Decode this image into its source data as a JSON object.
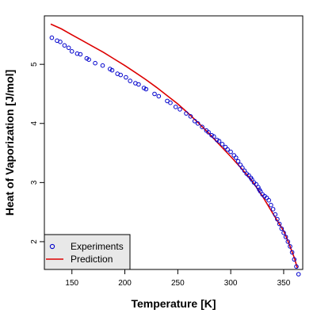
{
  "chart_data": {
    "type": "scatter",
    "xlabel": "Temperature [K]",
    "ylabel": "Heat of Vaporization [J/mol]",
    "xlim": [
      124,
      368
    ],
    "ylim": [
      1.53,
      5.82
    ],
    "x_ticks": [
      150,
      200,
      250,
      300,
      350
    ],
    "y_ticks": [
      2,
      3,
      4,
      5
    ],
    "grid": false,
    "legend_position": "bottom-left",
    "series": [
      {
        "name": "Experiments",
        "kind": "points",
        "color": "#0000cc",
        "marker": "open-circle",
        "points": [
          [
            131,
            5.45
          ],
          [
            136,
            5.4
          ],
          [
            139,
            5.38
          ],
          [
            143,
            5.32
          ],
          [
            147,
            5.28
          ],
          [
            150,
            5.22
          ],
          [
            155,
            5.18
          ],
          [
            158,
            5.17
          ],
          [
            164,
            5.1
          ],
          [
            166,
            5.08
          ],
          [
            172,
            5.02
          ],
          [
            179,
            4.98
          ],
          [
            186,
            4.92
          ],
          [
            188,
            4.9
          ],
          [
            193,
            4.84
          ],
          [
            196,
            4.82
          ],
          [
            201,
            4.78
          ],
          [
            205,
            4.72
          ],
          [
            210,
            4.68
          ],
          [
            213,
            4.66
          ],
          [
            218,
            4.6
          ],
          [
            220,
            4.58
          ],
          [
            228,
            4.5
          ],
          [
            232,
            4.46
          ],
          [
            240,
            4.38
          ],
          [
            243,
            4.35
          ],
          [
            248,
            4.28
          ],
          [
            252,
            4.24
          ],
          [
            258,
            4.17
          ],
          [
            262,
            4.12
          ],
          [
            266,
            4.04
          ],
          [
            269,
            4.0
          ],
          [
            273,
            3.94
          ],
          [
            277,
            3.88
          ],
          [
            279,
            3.85
          ],
          [
            282,
            3.8
          ],
          [
            284,
            3.78
          ],
          [
            287,
            3.72
          ],
          [
            289,
            3.7
          ],
          [
            292,
            3.65
          ],
          [
            295,
            3.6
          ],
          [
            297,
            3.56
          ],
          [
            300,
            3.52
          ],
          [
            303,
            3.46
          ],
          [
            305,
            3.42
          ],
          [
            307,
            3.36
          ],
          [
            309,
            3.3
          ],
          [
            311,
            3.25
          ],
          [
            313,
            3.2
          ],
          [
            315,
            3.15
          ],
          [
            317,
            3.12
          ],
          [
            319,
            3.08
          ],
          [
            320,
            3.05
          ],
          [
            322,
            3.0
          ],
          [
            324,
            2.97
          ],
          [
            326,
            2.92
          ],
          [
            327,
            2.88
          ],
          [
            328,
            2.85
          ],
          [
            330,
            2.8
          ],
          [
            332,
            2.77
          ],
          [
            334,
            2.74
          ],
          [
            336,
            2.7
          ],
          [
            338,
            2.62
          ],
          [
            340,
            2.55
          ],
          [
            342,
            2.46
          ],
          [
            344,
            2.38
          ],
          [
            346,
            2.3
          ],
          [
            348,
            2.22
          ],
          [
            350,
            2.15
          ],
          [
            352,
            2.08
          ],
          [
            354,
            2.0
          ],
          [
            356,
            1.92
          ],
          [
            358,
            1.82
          ],
          [
            360,
            1.7
          ],
          [
            362,
            1.58
          ],
          [
            364,
            1.45
          ]
        ]
      },
      {
        "name": "Prediction",
        "kind": "line",
        "color": "#dd0000",
        "points": [
          [
            130,
            5.68
          ],
          [
            140,
            5.6
          ],
          [
            150,
            5.5
          ],
          [
            160,
            5.4
          ],
          [
            170,
            5.3
          ],
          [
            180,
            5.2
          ],
          [
            190,
            5.09
          ],
          [
            200,
            4.98
          ],
          [
            210,
            4.86
          ],
          [
            220,
            4.74
          ],
          [
            230,
            4.61
          ],
          [
            240,
            4.47
          ],
          [
            250,
            4.33
          ],
          [
            260,
            4.17
          ],
          [
            270,
            4.0
          ],
          [
            280,
            3.82
          ],
          [
            290,
            3.63
          ],
          [
            300,
            3.44
          ],
          [
            310,
            3.24
          ],
          [
            320,
            3.03
          ],
          [
            330,
            2.77
          ],
          [
            340,
            2.47
          ],
          [
            350,
            2.18
          ],
          [
            355,
            1.97
          ],
          [
            360,
            1.73
          ],
          [
            363,
            1.55
          ]
        ]
      }
    ]
  }
}
